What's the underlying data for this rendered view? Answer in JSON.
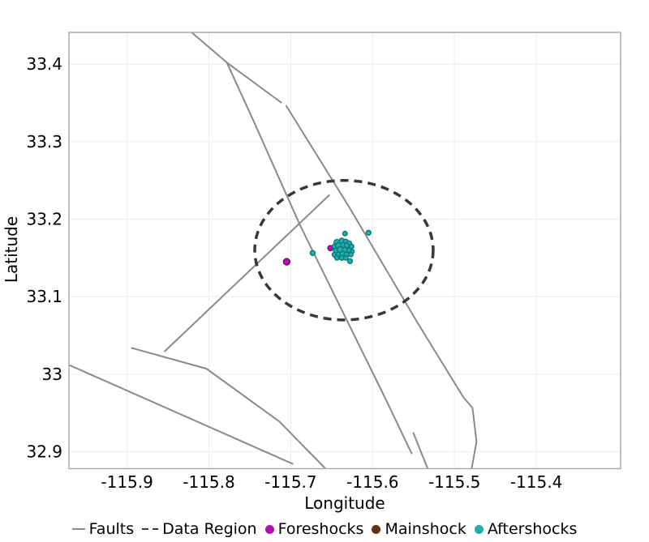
{
  "figure": {
    "xlabel": "Longitude",
    "ylabel": "Latitude"
  },
  "legend": {
    "items": [
      {
        "label": "Faults",
        "marker": "line",
        "color": "#8a8a8a"
      },
      {
        "label": "Data Region",
        "marker": "dashes",
        "color": "#3a3a3a"
      },
      {
        "label": "Foreshocks",
        "marker": "dot",
        "color": "#b312b3"
      },
      {
        "label": "Mainshock",
        "marker": "dot",
        "color": "#5c3317"
      },
      {
        "label": "Aftershocks",
        "marker": "dot",
        "color": "#1fb0ae"
      }
    ]
  },
  "chart_data": {
    "type": "scatter",
    "title": "",
    "xlabel": "Longitude",
    "ylabel": "Latitude",
    "xlim": [
      -115.971,
      -115.297
    ],
    "ylim": [
      32.878,
      33.441
    ],
    "grid": true,
    "legend_position": "bottom",
    "xticks": {
      "values": [
        -115.9,
        -115.8,
        -115.7,
        -115.6,
        -115.5,
        -115.4
      ],
      "labels": [
        "-115.9",
        "-115.8",
        "-115.7",
        "-115.6",
        "-115.5",
        "-115.4"
      ]
    },
    "yticks": {
      "values": [
        32.9,
        33.0,
        33.1,
        33.2,
        33.3,
        33.4
      ],
      "labels": [
        "32.9",
        "33",
        "33.1",
        "33.2",
        "33.3",
        "33.4"
      ]
    },
    "colors": {
      "grid": "#ebebeb",
      "frame": "#a6a6a6",
      "faults": "#8a8a8a",
      "data_region": "#383838",
      "foreshocks_fill": "#b312b3",
      "foreshocks_edge": "#740874",
      "mainshock_fill": "#5c3317",
      "mainshock_edge": "#3a200b",
      "aftershocks_fill": "#1fb0ae",
      "aftershocks_edge": "#0d7a77"
    },
    "faults": {
      "width": 2,
      "polylines": [
        [
          [
            -115.821,
            33.441
          ],
          [
            -115.778,
            33.402
          ],
          [
            -115.746,
            33.328
          ],
          [
            -115.689,
            33.193
          ],
          [
            -115.585,
            32.97
          ],
          [
            -115.552,
            32.897
          ]
        ],
        [
          [
            -115.778,
            33.402
          ],
          [
            -115.711,
            33.35
          ]
        ],
        [
          [
            -115.706,
            33.347
          ],
          [
            -115.63,
            33.218
          ],
          [
            -115.5455,
            33.067
          ],
          [
            -115.489,
            32.97
          ],
          [
            -115.478,
            32.9565
          ],
          [
            -115.473,
            32.913
          ],
          [
            -115.479,
            32.878
          ]
        ],
        [
          [
            -115.5505,
            32.925
          ],
          [
            -115.5327,
            32.878
          ]
        ],
        [
          [
            -115.895,
            33.034
          ],
          [
            -115.803,
            33.007
          ],
          [
            -115.714,
            32.939
          ],
          [
            -115.6575,
            32.878
          ]
        ],
        [
          [
            -115.9713,
            33.012
          ],
          [
            -115.697,
            32.884
          ]
        ],
        [
          [
            -115.8545,
            33.029
          ],
          [
            -115.6525,
            33.2315
          ]
        ]
      ]
    },
    "data_region": {
      "center": [
        -115.635,
        33.16
      ],
      "rx": 0.109,
      "ry": 0.09,
      "dash": [
        10,
        7
      ],
      "width": 3.5
    },
    "foreshocks": {
      "points": [
        [
          -115.705,
          33.145,
          4.0
        ],
        [
          -115.6515,
          33.1626,
          3.2
        ]
      ]
    },
    "mainshock": {
      "points": [
        [
          -115.6396,
          33.1603,
          4.0
        ]
      ]
    },
    "aftershocks": {
      "points": [
        [
          -115.6337,
          33.1814,
          2.8
        ],
        [
          -115.605,
          33.1824,
          3.0
        ],
        [
          -115.6733,
          33.1563,
          3.0
        ],
        [
          -115.6436,
          33.1699,
          3.7
        ],
        [
          -115.6376,
          33.172,
          3.3
        ],
        [
          -115.6327,
          33.171,
          3.0
        ],
        [
          -115.6287,
          33.1689,
          3.0
        ],
        [
          -115.6465,
          33.1647,
          3.0
        ],
        [
          -115.6416,
          33.1657,
          3.7
        ],
        [
          -115.6356,
          33.1668,
          3.3
        ],
        [
          -115.6317,
          33.1657,
          3.0
        ],
        [
          -115.6257,
          33.1647,
          2.8
        ],
        [
          -115.6446,
          33.1594,
          3.3
        ],
        [
          -115.6396,
          33.1605,
          3.8
        ],
        [
          -115.6337,
          33.1605,
          3.3
        ],
        [
          -115.6287,
          33.1594,
          3.0
        ],
        [
          -115.6248,
          33.1584,
          2.4
        ],
        [
          -115.6465,
          33.1542,
          3.0
        ],
        [
          -115.6416,
          33.1542,
          3.3
        ],
        [
          -115.6366,
          33.1552,
          3.3
        ],
        [
          -115.6317,
          33.1542,
          3.0
        ],
        [
          -115.6267,
          33.1542,
          2.8
        ],
        [
          -115.6436,
          33.15,
          2.8
        ],
        [
          -115.6376,
          33.15,
          3.0
        ],
        [
          -115.6327,
          33.15,
          2.8
        ],
        [
          -115.6277,
          33.1459,
          3.0
        ]
      ]
    }
  }
}
